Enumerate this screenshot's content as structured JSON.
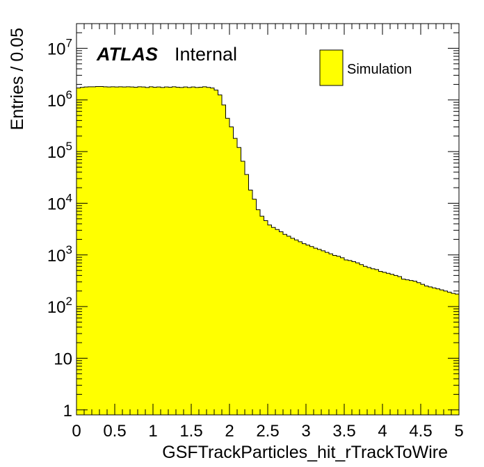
{
  "chart_data": {
    "type": "histogram",
    "xlabel": "GSFTrackParticles_hit_rTrackToWire",
    "ylabel": "Entries / 0.05",
    "xlim": [
      0,
      5
    ],
    "ylim": [
      0.8,
      30000000
    ],
    "yscale": "log",
    "bin_width": 0.05,
    "x_ticks": [
      "0",
      "0.5",
      "1",
      "1.5",
      "2",
      "2.5",
      "3",
      "3.5",
      "4",
      "4.5",
      "5"
    ],
    "y_ticks": [
      {
        "base": "1",
        "exp": ""
      },
      {
        "base": "10",
        "exp": ""
      },
      {
        "base": "10",
        "exp": "2"
      },
      {
        "base": "10",
        "exp": "3"
      },
      {
        "base": "10",
        "exp": "4"
      },
      {
        "base": "10",
        "exp": "5"
      },
      {
        "base": "10",
        "exp": "6"
      },
      {
        "base": "10",
        "exp": "7"
      }
    ],
    "series": [
      {
        "name": "Simulation",
        "color": "#ffff00",
        "values": [
          1700000,
          1750000,
          1780000,
          1800000,
          1800000,
          1820000,
          1820000,
          1800000,
          1780000,
          1800000,
          1780000,
          1800000,
          1780000,
          1800000,
          1780000,
          1760000,
          1800000,
          1780000,
          1740000,
          1800000,
          1760000,
          1780000,
          1740000,
          1780000,
          1760000,
          1800000,
          1760000,
          1740000,
          1780000,
          1740000,
          1780000,
          1740000,
          1760000,
          1800000,
          1750000,
          1700000,
          1550000,
          1250000,
          800000,
          440000,
          300000,
          180000,
          120000,
          65000,
          36000,
          18000,
          12000,
          7500,
          5600,
          4600,
          3800,
          3400,
          3100,
          2800,
          2500,
          2300,
          2100,
          1950,
          1800,
          1650,
          1550,
          1450,
          1350,
          1280,
          1200,
          1120,
          1050,
          980,
          940,
          880,
          800,
          780,
          740,
          700,
          650,
          600,
          570,
          540,
          520,
          480,
          460,
          440,
          420,
          400,
          380,
          340,
          330,
          320,
          310,
          290,
          270,
          250,
          240,
          230,
          220,
          210,
          200,
          190,
          180,
          175
        ]
      }
    ],
    "legend": "top-right"
  },
  "annotation": {
    "atlas": "ATLAS",
    "status": "Internal"
  },
  "legend": {
    "entry_label": "Simulation"
  }
}
